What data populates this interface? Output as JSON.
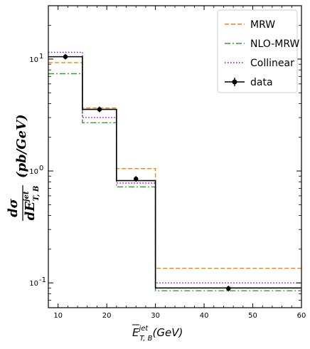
{
  "chart_data": {
    "type": "step",
    "x_axis": {
      "label_main": "E",
      "label_sup": "jet",
      "label_sub": "T, B",
      "label_unit": "(GeV)",
      "range": [
        8,
        60
      ],
      "ticks": [
        10,
        20,
        30,
        40,
        50,
        60
      ],
      "tick_labels": [
        "10",
        "20",
        "30",
        "40",
        "50",
        "60"
      ]
    },
    "y_axis": {
      "label_numerator": "dσ",
      "label_denominator": "dE",
      "label_denominator_sup": "jet",
      "label_denominator_sub": "T, B",
      "label_unit": "(pb/GeV)",
      "scale": "log",
      "range": [
        0.06,
        30
      ],
      "major_ticks": [
        0.1,
        1,
        10
      ],
      "major_tick_labels": [
        "10",
        "10",
        "10"
      ],
      "major_tick_exponents": [
        "-1",
        "0",
        "1"
      ]
    },
    "bin_edges": [
      8,
      15,
      22,
      30,
      60
    ],
    "series": [
      {
        "name": "MRW",
        "color": "#ff7f0e",
        "dash": "6,3",
        "values": [
          9.3,
          3.65,
          1.05,
          0.135
        ]
      },
      {
        "name": "NLO-MRW",
        "color": "#2ca02c",
        "dash": "8,3,2,3",
        "values": [
          7.4,
          2.7,
          0.72,
          0.085
        ]
      },
      {
        "name": "Collinear",
        "color": "#9400d3",
        "dash": "1.5,2.5",
        "values": [
          11.5,
          3.0,
          0.78,
          0.1
        ]
      },
      {
        "name": "",
        "color": "#000000",
        "dash": "",
        "values": [
          10.5,
          3.55,
          0.82,
          0.09
        ]
      }
    ],
    "data_points": {
      "name": "data",
      "color": "#000000",
      "points": [
        {
          "x": 11.5,
          "y": 10.5
        },
        {
          "x": 18.5,
          "y": 3.55
        },
        {
          "x": 26,
          "y": 0.85
        },
        {
          "x": 45,
          "y": 0.089
        }
      ]
    },
    "legend": {
      "placement": "top-right",
      "entries": [
        "MRW",
        "NLO-MRW",
        "Collinear",
        "data"
      ]
    },
    "grid": false
  }
}
